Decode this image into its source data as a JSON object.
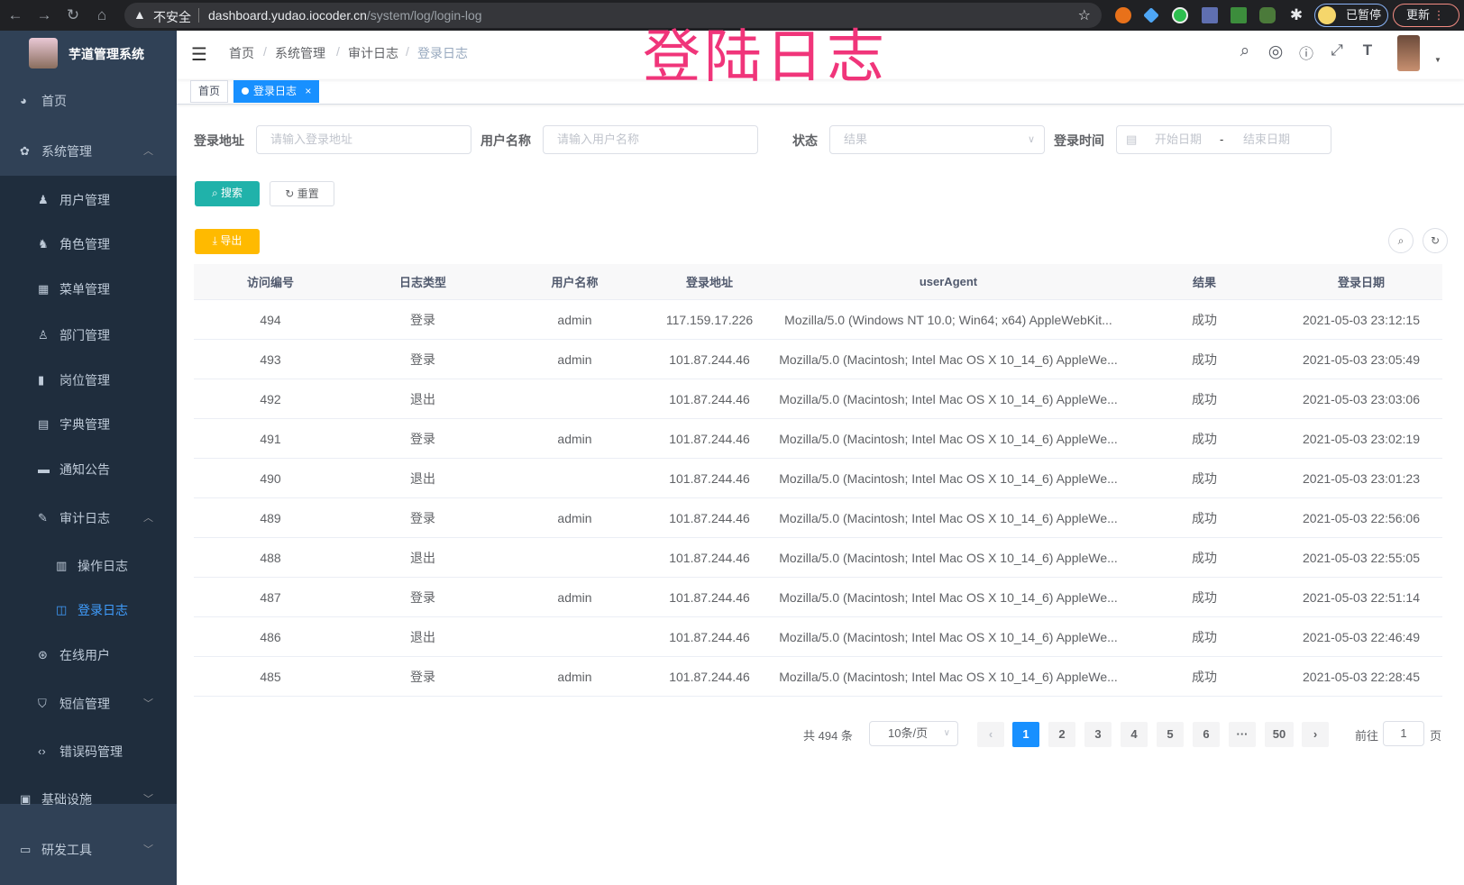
{
  "browser": {
    "security_label": "不安全",
    "url_host": "dashboard.yudao.iocoder.cn",
    "url_path": "/system/log/login-log",
    "profile_label": "已暂停",
    "update_label": "更新"
  },
  "overlay_title": "登陆日志",
  "sidebar": {
    "app_name": "芋道管理系统",
    "items": [
      {
        "label": "首页",
        "icon": "dashboard-icon"
      },
      {
        "label": "系统管理",
        "icon": "gear-icon",
        "expanded": true
      },
      {
        "label": "用户管理",
        "icon": "user-icon"
      },
      {
        "label": "角色管理",
        "icon": "peoples-icon"
      },
      {
        "label": "菜单管理",
        "icon": "tree-table-icon"
      },
      {
        "label": "部门管理",
        "icon": "tree-icon"
      },
      {
        "label": "岗位管理",
        "icon": "post-icon"
      },
      {
        "label": "字典管理",
        "icon": "dict-icon"
      },
      {
        "label": "通知公告",
        "icon": "message-icon"
      },
      {
        "label": "审计日志",
        "icon": "log-icon",
        "expanded": true
      },
      {
        "label": "操作日志",
        "icon": "form-icon"
      },
      {
        "label": "登录日志",
        "icon": "logininfor-icon",
        "active": true
      },
      {
        "label": "在线用户",
        "icon": "online-icon"
      },
      {
        "label": "短信管理",
        "icon": "shield-icon",
        "expanded": false
      },
      {
        "label": "错误码管理",
        "icon": "code-icon"
      },
      {
        "label": "基础设施",
        "icon": "monitor-icon",
        "expanded": false
      },
      {
        "label": "研发工具",
        "icon": "toolbox-icon",
        "expanded": false
      }
    ],
    "active_color": "#409eff"
  },
  "header": {
    "breadcrumb": [
      "首页",
      "系统管理",
      "审计日志",
      "登录日志"
    ]
  },
  "tags": [
    {
      "label": "首页"
    },
    {
      "label": "登录日志",
      "active": true,
      "close": "×"
    }
  ],
  "filters": {
    "address": {
      "label": "登录地址",
      "placeholder": "请输入登录地址"
    },
    "username": {
      "label": "用户名称",
      "placeholder": "请输入用户名称"
    },
    "status": {
      "label": "状态",
      "placeholder": "结果"
    },
    "time": {
      "label": "登录时间",
      "start_placeholder": "开始日期",
      "separator": "-",
      "end_placeholder": "结束日期"
    }
  },
  "actions": {
    "search": "搜索",
    "reset": "重置",
    "export": "导出"
  },
  "colors": {
    "search": "#20b2aa",
    "export": "#ffba00",
    "primary": "#1890ff",
    "overlay": "#f0357a"
  },
  "table": {
    "columns": [
      "访问编号",
      "日志类型",
      "用户名称",
      "登录地址",
      "userAgent",
      "结果",
      "登录日期"
    ],
    "rows": [
      [
        "494",
        "登录",
        "admin",
        "117.159.17.226",
        "Mozilla/5.0 (Windows NT 10.0; Win64; x64) AppleWebKit...",
        "成功",
        "2021-05-03 23:12:15"
      ],
      [
        "493",
        "登录",
        "admin",
        "101.87.244.46",
        "Mozilla/5.0 (Macintosh; Intel Mac OS X 10_14_6) AppleWe...",
        "成功",
        "2021-05-03 23:05:49"
      ],
      [
        "492",
        "退出",
        "",
        "101.87.244.46",
        "Mozilla/5.0 (Macintosh; Intel Mac OS X 10_14_6) AppleWe...",
        "成功",
        "2021-05-03 23:03:06"
      ],
      [
        "491",
        "登录",
        "admin",
        "101.87.244.46",
        "Mozilla/5.0 (Macintosh; Intel Mac OS X 10_14_6) AppleWe...",
        "成功",
        "2021-05-03 23:02:19"
      ],
      [
        "490",
        "退出",
        "",
        "101.87.244.46",
        "Mozilla/5.0 (Macintosh; Intel Mac OS X 10_14_6) AppleWe...",
        "成功",
        "2021-05-03 23:01:23"
      ],
      [
        "489",
        "登录",
        "admin",
        "101.87.244.46",
        "Mozilla/5.0 (Macintosh; Intel Mac OS X 10_14_6) AppleWe...",
        "成功",
        "2021-05-03 22:56:06"
      ],
      [
        "488",
        "退出",
        "",
        "101.87.244.46",
        "Mozilla/5.0 (Macintosh; Intel Mac OS X 10_14_6) AppleWe...",
        "成功",
        "2021-05-03 22:55:05"
      ],
      [
        "487",
        "登录",
        "admin",
        "101.87.244.46",
        "Mozilla/5.0 (Macintosh; Intel Mac OS X 10_14_6) AppleWe...",
        "成功",
        "2021-05-03 22:51:14"
      ],
      [
        "486",
        "退出",
        "",
        "101.87.244.46",
        "Mozilla/5.0 (Macintosh; Intel Mac OS X 10_14_6) AppleWe...",
        "成功",
        "2021-05-03 22:46:49"
      ],
      [
        "485",
        "登录",
        "admin",
        "101.87.244.46",
        "Mozilla/5.0 (Macintosh; Intel Mac OS X 10_14_6) AppleWe...",
        "成功",
        "2021-05-03 22:28:45"
      ]
    ]
  },
  "pagination": {
    "total_text": "共 494 条",
    "page_size": "10条/页",
    "pages": [
      "1",
      "2",
      "3",
      "4",
      "5",
      "6",
      "···",
      "50"
    ],
    "current": "1",
    "goto_label": "前往",
    "goto_value": "1",
    "page_suffix": "页"
  }
}
